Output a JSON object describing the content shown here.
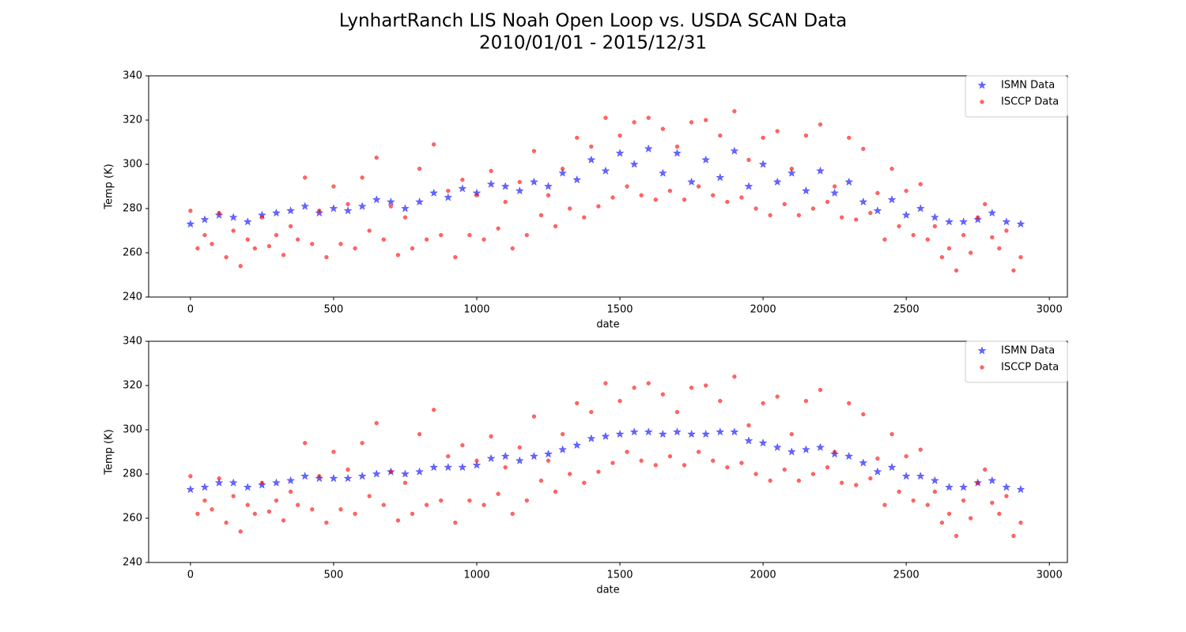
{
  "title": [
    "LynhartRanch LIS Noah Open Loop vs. USDA SCAN Data",
    "2010/01/01 - 2015/12/31"
  ],
  "chart_data": [
    {
      "type": "scatter",
      "xlabel": "date",
      "ylabel": "Temp (K)",
      "xlim": [
        -146,
        3063
      ],
      "ylim": [
        240,
        340
      ],
      "xticks": [
        0,
        500,
        1000,
        1500,
        2000,
        2500,
        3000
      ],
      "yticks": [
        240,
        260,
        280,
        300,
        320,
        340
      ],
      "legend": "upper right",
      "series": [
        {
          "name": "ISMN Data",
          "color": "#0000ff",
          "marker": "star",
          "x": [
            0,
            50,
            100,
            150,
            200,
            250,
            300,
            350,
            400,
            450,
            500,
            550,
            600,
            650,
            700,
            750,
            800,
            850,
            900,
            950,
            1000,
            1050,
            1100,
            1150,
            1200,
            1250,
            1300,
            1350,
            1400,
            1450,
            1500,
            1550,
            1600,
            1650,
            1700,
            1750,
            1800,
            1850,
            1900,
            1950,
            2000,
            2050,
            2100,
            2150,
            2200,
            2250,
            2300,
            2350,
            2400,
            2450,
            2500,
            2550,
            2600,
            2650,
            2700,
            2750,
            2800,
            2850,
            2900
          ],
          "values": [
            273,
            275,
            277,
            276,
            274,
            277,
            278,
            279,
            281,
            278,
            280,
            279,
            281,
            284,
            283,
            280,
            283,
            287,
            285,
            289,
            287,
            291,
            290,
            288,
            292,
            290,
            296,
            293,
            302,
            297,
            305,
            300,
            307,
            296,
            305,
            292,
            302,
            294,
            306,
            290,
            300,
            292,
            296,
            288,
            297,
            287,
            292,
            283,
            279,
            284,
            277,
            280,
            276,
            274,
            274,
            275,
            278,
            274,
            273
          ]
        },
        {
          "name": "ISCCP Data",
          "color": "#ff0000",
          "marker": "circle",
          "x": [
            0,
            25,
            50,
            75,
            100,
            125,
            150,
            175,
            200,
            225,
            250,
            275,
            300,
            325,
            350,
            375,
            400,
            425,
            450,
            475,
            500,
            525,
            550,
            575,
            600,
            625,
            650,
            675,
            700,
            725,
            750,
            775,
            800,
            825,
            850,
            875,
            900,
            925,
            950,
            975,
            1000,
            1025,
            1050,
            1075,
            1100,
            1125,
            1150,
            1175,
            1200,
            1225,
            1250,
            1275,
            1300,
            1325,
            1350,
            1375,
            1400,
            1425,
            1450,
            1475,
            1500,
            1525,
            1550,
            1575,
            1600,
            1625,
            1650,
            1675,
            1700,
            1725,
            1750,
            1775,
            1800,
            1825,
            1850,
            1875,
            1900,
            1925,
            1950,
            1975,
            2000,
            2025,
            2050,
            2075,
            2100,
            2125,
            2150,
            2175,
            2200,
            2225,
            2250,
            2275,
            2300,
            2325,
            2350,
            2375,
            2400,
            2425,
            2450,
            2475,
            2500,
            2525,
            2550,
            2575,
            2600,
            2625,
            2650,
            2675,
            2700,
            2725,
            2750,
            2775,
            2800,
            2825,
            2850,
            2875,
            2900
          ],
          "values": [
            279,
            262,
            268,
            264,
            278,
            258,
            270,
            254,
            266,
            262,
            276,
            263,
            268,
            259,
            272,
            266,
            294,
            264,
            279,
            258,
            290,
            264,
            282,
            262,
            294,
            270,
            303,
            266,
            281,
            259,
            276,
            262,
            298,
            266,
            309,
            268,
            288,
            258,
            293,
            268,
            286,
            266,
            297,
            271,
            283,
            262,
            292,
            268,
            306,
            277,
            286,
            272,
            298,
            280,
            312,
            276,
            308,
            281,
            321,
            285,
            313,
            290,
            319,
            286,
            321,
            284,
            316,
            288,
            308,
            284,
            319,
            290,
            320,
            286,
            313,
            283,
            324,
            285,
            302,
            280,
            312,
            277,
            315,
            282,
            298,
            277,
            313,
            280,
            318,
            283,
            290,
            276,
            312,
            275,
            307,
            278,
            287,
            266,
            298,
            272,
            288,
            268,
            291,
            266,
            272,
            258,
            262,
            252,
            268,
            260,
            276,
            282,
            267,
            262,
            270,
            252,
            258
          ]
        }
      ]
    },
    {
      "type": "scatter",
      "xlabel": "date",
      "ylabel": "Temp (K)",
      "xlim": [
        -146,
        3063
      ],
      "ylim": [
        240,
        340
      ],
      "xticks": [
        0,
        500,
        1000,
        1500,
        2000,
        2500,
        3000
      ],
      "yticks": [
        240,
        260,
        280,
        300,
        320,
        340
      ],
      "legend": "upper right",
      "series": [
        {
          "name": "ISMN Data",
          "color": "#0000ff",
          "marker": "star",
          "x": [
            0,
            50,
            100,
            150,
            200,
            250,
            300,
            350,
            400,
            450,
            500,
            550,
            600,
            650,
            700,
            750,
            800,
            850,
            900,
            950,
            1000,
            1050,
            1100,
            1150,
            1200,
            1250,
            1300,
            1350,
            1400,
            1450,
            1500,
            1550,
            1600,
            1650,
            1700,
            1750,
            1800,
            1850,
            1900,
            1950,
            2000,
            2050,
            2100,
            2150,
            2200,
            2250,
            2300,
            2350,
            2400,
            2450,
            2500,
            2550,
            2600,
            2650,
            2700,
            2750,
            2800,
            2850,
            2900
          ],
          "values": [
            273,
            274,
            276,
            276,
            274,
            275,
            276,
            277,
            279,
            278,
            278,
            278,
            279,
            280,
            281,
            280,
            281,
            283,
            283,
            283,
            284,
            287,
            288,
            286,
            288,
            289,
            291,
            293,
            296,
            297,
            298,
            299,
            299,
            298,
            299,
            298,
            298,
            299,
            299,
            295,
            294,
            292,
            290,
            291,
            292,
            289,
            288,
            285,
            281,
            283,
            279,
            279,
            277,
            274,
            274,
            276,
            277,
            274,
            273
          ]
        },
        {
          "name": "ISCCP Data",
          "color": "#ff0000",
          "marker": "circle",
          "x": [
            0,
            25,
            50,
            75,
            100,
            125,
            150,
            175,
            200,
            225,
            250,
            275,
            300,
            325,
            350,
            375,
            400,
            425,
            450,
            475,
            500,
            525,
            550,
            575,
            600,
            625,
            650,
            675,
            700,
            725,
            750,
            775,
            800,
            825,
            850,
            875,
            900,
            925,
            950,
            975,
            1000,
            1025,
            1050,
            1075,
            1100,
            1125,
            1150,
            1175,
            1200,
            1225,
            1250,
            1275,
            1300,
            1325,
            1350,
            1375,
            1400,
            1425,
            1450,
            1475,
            1500,
            1525,
            1550,
            1575,
            1600,
            1625,
            1650,
            1675,
            1700,
            1725,
            1750,
            1775,
            1800,
            1825,
            1850,
            1875,
            1900,
            1925,
            1950,
            1975,
            2000,
            2025,
            2050,
            2075,
            2100,
            2125,
            2150,
            2175,
            2200,
            2225,
            2250,
            2275,
            2300,
            2325,
            2350,
            2375,
            2400,
            2425,
            2450,
            2475,
            2500,
            2525,
            2550,
            2575,
            2600,
            2625,
            2650,
            2675,
            2700,
            2725,
            2750,
            2775,
            2800,
            2825,
            2850,
            2875,
            2900
          ],
          "values": [
            279,
            262,
            268,
            264,
            278,
            258,
            270,
            254,
            266,
            262,
            276,
            263,
            268,
            259,
            272,
            266,
            294,
            264,
            279,
            258,
            290,
            264,
            282,
            262,
            294,
            270,
            303,
            266,
            281,
            259,
            276,
            262,
            298,
            266,
            309,
            268,
            288,
            258,
            293,
            268,
            286,
            266,
            297,
            271,
            283,
            262,
            292,
            268,
            306,
            277,
            286,
            272,
            298,
            280,
            312,
            276,
            308,
            281,
            321,
            285,
            313,
            290,
            319,
            286,
            321,
            284,
            316,
            288,
            308,
            284,
            319,
            290,
            320,
            286,
            313,
            283,
            324,
            285,
            302,
            280,
            312,
            277,
            315,
            282,
            298,
            277,
            313,
            280,
            318,
            283,
            290,
            276,
            312,
            275,
            307,
            278,
            287,
            266,
            298,
            272,
            288,
            268,
            291,
            266,
            272,
            258,
            262,
            252,
            268,
            260,
            276,
            282,
            267,
            262,
            270,
            252,
            258
          ]
        }
      ]
    }
  ]
}
